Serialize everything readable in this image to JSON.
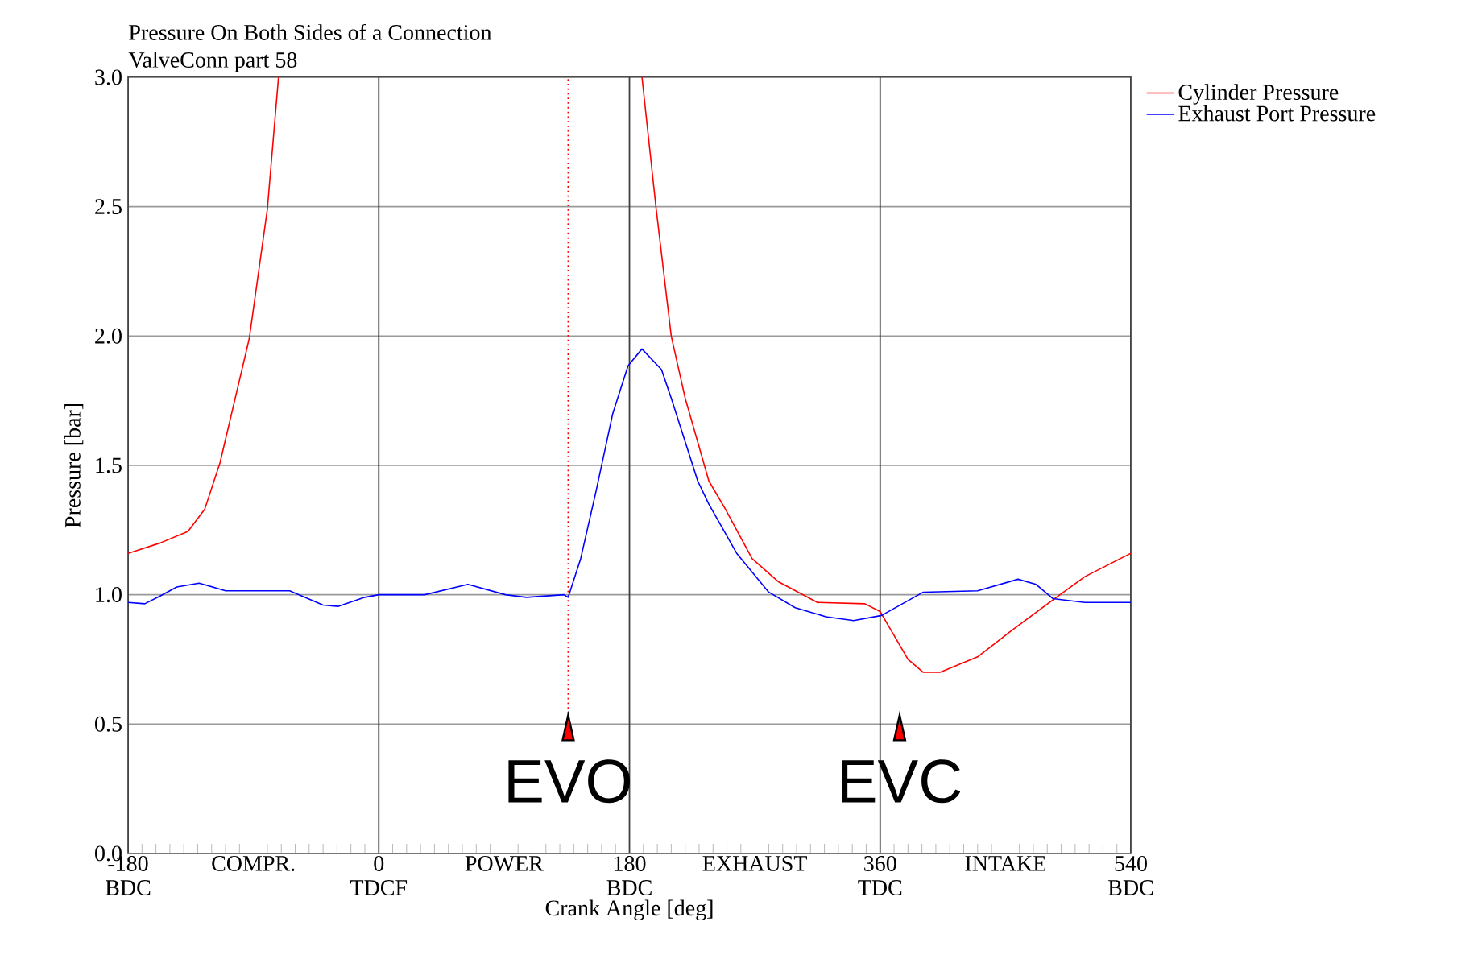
{
  "chart_data": {
    "type": "line",
    "title": "Pressure On Both Sides of a Connection",
    "subtitle": "ValveConn part 58",
    "xlabel": "Crank Angle [deg]",
    "ylabel": "Pressure [bar]",
    "xlim": [
      -180,
      540
    ],
    "ylim": [
      0,
      3
    ],
    "xticks": [
      {
        "value": -180,
        "label": "-180\nBDC"
      },
      {
        "value": -90,
        "label": "COMPR."
      },
      {
        "value": 0,
        "label": "0\nTDCF"
      },
      {
        "value": 90,
        "label": "POWER"
      },
      {
        "value": 180,
        "label": "180\nBDC"
      },
      {
        "value": 270,
        "label": "EXHAUST"
      },
      {
        "value": 360,
        "label": "360\nTDC"
      },
      {
        "value": 450,
        "label": "INTAKE"
      },
      {
        "value": 540,
        "label": "540\nBDC"
      }
    ],
    "yticks": [
      {
        "value": 0,
        "label": "0.0"
      },
      {
        "value": 0.5,
        "label": "0.5"
      },
      {
        "value": 1,
        "label": "1.0"
      },
      {
        "value": 1.5,
        "label": "1.5"
      },
      {
        "value": 2,
        "label": "2.0"
      },
      {
        "value": 2.5,
        "label": "2.5"
      },
      {
        "value": 3,
        "label": "3.0"
      }
    ],
    "grid": true,
    "legend": "right",
    "marker": "none",
    "line_style": "solid",
    "series": [
      {
        "name": "Cylinder Pressure",
        "color": "#ff0000",
        "x": [
          -180,
          -157,
          -137,
          -125,
          -114,
          -93,
          -80,
          -72,
          60,
          189,
          199,
          210,
          220,
          237,
          249,
          268,
          287,
          315,
          349,
          360,
          380,
          391,
          403,
          430,
          454,
          484,
          507,
          540
        ],
        "values": [
          1.16,
          1.2,
          1.245,
          1.33,
          1.51,
          1.99,
          2.49,
          3.0,
          null,
          3.0,
          2.5,
          2.0,
          1.76,
          1.44,
          1.33,
          1.14,
          1.05,
          0.97,
          0.965,
          0.935,
          0.75,
          0.7,
          0.7,
          0.76,
          0.86,
          0.98,
          1.07,
          1.16
        ]
      },
      {
        "name": "Exhaust Port Pressure",
        "color": "#0000ff",
        "x": [
          -180,
          -168,
          -157,
          -145,
          -129,
          -110,
          -64,
          -40,
          -29,
          -10,
          0,
          33,
          64,
          91,
          106,
          133,
          136,
          145,
          156,
          168,
          179,
          189,
          203,
          210,
          229,
          237,
          257,
          280,
          299,
          321,
          341,
          361,
          391,
          430,
          459,
          472,
          484,
          507,
          540
        ],
        "values": [
          0.97,
          0.965,
          0.995,
          1.03,
          1.045,
          1.015,
          1.015,
          0.96,
          0.955,
          0.99,
          1.0,
          1.0,
          1.04,
          1.0,
          0.99,
          1.0,
          0.99,
          1.14,
          1.4,
          1.7,
          1.885,
          1.95,
          1.87,
          1.76,
          1.44,
          1.35,
          1.16,
          1.01,
          0.95,
          0.915,
          0.9,
          0.92,
          1.01,
          1.015,
          1.06,
          1.04,
          0.985,
          0.97,
          0.97
        ]
      },
      {
        "type": "scatter",
        "color": "#ff0000",
        "marker": "triangle",
        "x": [
          136,
          374
        ],
        "values": [
          0.47,
          0.47
        ]
      }
    ],
    "ref_lines": [
      {
        "axis": "x",
        "value": 136,
        "color": "#ff0000",
        "line_style": "dotted"
      }
    ],
    "annotations": [
      {
        "text": "EVO",
        "x": 136,
        "y": 0.47
      },
      {
        "text": "EVC",
        "x": 374,
        "y": 0.47
      }
    ]
  }
}
